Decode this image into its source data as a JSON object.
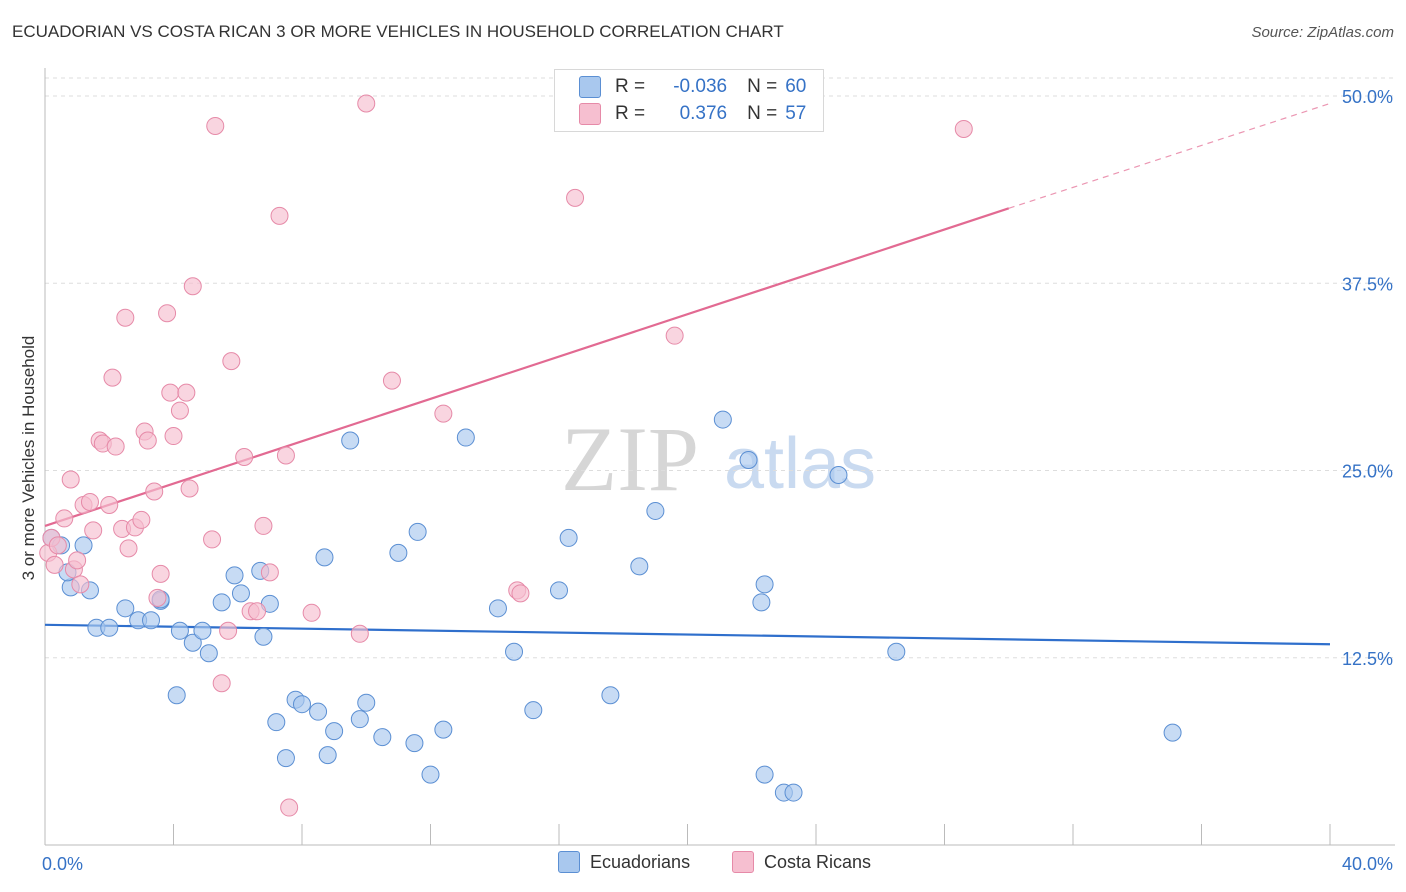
{
  "title": "ECUADORIAN VS COSTA RICAN 3 OR MORE VEHICLES IN HOUSEHOLD CORRELATION CHART",
  "source": "Source: ZipAtlas.com",
  "watermark": {
    "zip": "ZIP",
    "atlas": "atlas"
  },
  "colors": {
    "blue_fill": "#a9c8ee",
    "blue_stroke": "#5b8fd3",
    "blue_line": "#2f6fcc",
    "pink_fill": "#f6bfd0",
    "pink_stroke": "#e68aa8",
    "pink_line": "#e26a92",
    "tick_label": "#3572c6",
    "grid": "#dddddd"
  },
  "legend": {
    "rows": [
      {
        "r_label": "R =",
        "r_value": "-0.036",
        "n_label": "N =",
        "n_value": "60",
        "color": "#a9c8ee",
        "stroke": "#5b8fd3"
      },
      {
        "r_label": "R =",
        "r_value": "0.376",
        "n_label": "N =",
        "n_value": "57",
        "color": "#f6bfd0",
        "stroke": "#e68aa8"
      }
    ]
  },
  "bottom_legend": [
    {
      "label": "Ecuadorians",
      "color": "#a9c8ee",
      "stroke": "#5b8fd3"
    },
    {
      "label": "Costa Ricans",
      "color": "#f6bfd0",
      "stroke": "#e68aa8"
    }
  ],
  "chart_data": {
    "type": "scatter",
    "title": "ECUADORIAN VS COSTA RICAN 3 OR MORE VEHICLES IN HOUSEHOLD CORRELATION CHART",
    "xlabel": "",
    "ylabel": "3 or more Vehicles in Household",
    "xlim": [
      0,
      40
    ],
    "ylim": [
      0,
      50
    ],
    "x_tick_labels": [
      {
        "value": 0,
        "label": "0.0%"
      },
      {
        "value": 40,
        "label": "40.0%"
      }
    ],
    "y_tick_labels": [
      {
        "value": 12.5,
        "label": "12.5%"
      },
      {
        "value": 25,
        "label": "25.0%"
      },
      {
        "value": 37.5,
        "label": "37.5%"
      },
      {
        "value": 50,
        "label": "50.0%"
      }
    ],
    "x_minor_ticks": [
      0,
      4,
      8,
      12,
      16,
      20,
      24,
      28,
      32,
      36,
      40
    ],
    "grid": true,
    "series": [
      {
        "name": "Ecuadorians",
        "r": -0.036,
        "n": 60,
        "trend": {
          "x0": 0,
          "y0": 14.7,
          "x1": 40,
          "y1": 13.4
        },
        "points": [
          [
            0.2,
            20.5
          ],
          [
            0.5,
            20.0
          ],
          [
            0.8,
            17.2
          ],
          [
            0.7,
            18.2
          ],
          [
            1.4,
            17.0
          ],
          [
            1.6,
            14.5
          ],
          [
            2.0,
            14.5
          ],
          [
            2.5,
            15.8
          ],
          [
            2.9,
            15.0
          ],
          [
            3.3,
            15.0
          ],
          [
            3.6,
            16.3
          ],
          [
            4.2,
            14.3
          ],
          [
            4.6,
            13.5
          ],
          [
            5.1,
            12.8
          ],
          [
            4.9,
            14.3
          ],
          [
            5.5,
            16.2
          ],
          [
            6.1,
            16.8
          ],
          [
            5.9,
            18.0
          ],
          [
            6.7,
            18.3
          ],
          [
            6.8,
            13.9
          ],
          [
            7.0,
            16.1
          ],
          [
            7.2,
            8.2
          ],
          [
            7.5,
            5.8
          ],
          [
            7.8,
            9.7
          ],
          [
            8.0,
            9.4
          ],
          [
            8.5,
            8.9
          ],
          [
            8.8,
            6.0
          ],
          [
            9.0,
            7.6
          ],
          [
            9.5,
            27.0
          ],
          [
            9.8,
            8.4
          ],
          [
            10.0,
            9.5
          ],
          [
            10.5,
            7.2
          ],
          [
            11.0,
            19.5
          ],
          [
            11.5,
            6.8
          ],
          [
            11.6,
            20.9
          ],
          [
            12.0,
            4.7
          ],
          [
            12.4,
            7.7
          ],
          [
            13.1,
            27.2
          ],
          [
            14.1,
            15.8
          ],
          [
            14.6,
            12.9
          ],
          [
            15.2,
            9.0
          ],
          [
            16.0,
            17.0
          ],
          [
            16.3,
            20.5
          ],
          [
            17.6,
            10.0
          ],
          [
            18.5,
            18.6
          ],
          [
            19.0,
            22.3
          ],
          [
            21.1,
            28.4
          ],
          [
            21.9,
            25.7
          ],
          [
            22.4,
            4.7
          ],
          [
            22.3,
            16.2
          ],
          [
            22.4,
            17.4
          ],
          [
            23.0,
            3.5
          ],
          [
            23.3,
            3.5
          ],
          [
            24.7,
            24.7
          ],
          [
            26.5,
            12.9
          ],
          [
            35.1,
            7.5
          ],
          [
            3.6,
            16.4
          ],
          [
            1.2,
            20.0
          ],
          [
            8.7,
            19.2
          ],
          [
            4.1,
            10.0
          ]
        ]
      },
      {
        "name": "Costa Ricans",
        "r": 0.376,
        "n": 57,
        "trend": {
          "x0": 0,
          "y0": 21.3,
          "x1": 30,
          "y1": 42.5,
          "dash_x1": 40,
          "dash_y1": 49.5
        },
        "points": [
          [
            0.1,
            19.5
          ],
          [
            0.2,
            20.5
          ],
          [
            0.4,
            20.0
          ],
          [
            0.6,
            21.8
          ],
          [
            0.8,
            24.4
          ],
          [
            0.9,
            18.4
          ],
          [
            1.0,
            19.0
          ],
          [
            1.1,
            17.4
          ],
          [
            1.2,
            22.7
          ],
          [
            1.4,
            22.9
          ],
          [
            1.5,
            21.0
          ],
          [
            1.7,
            27.0
          ],
          [
            1.8,
            26.8
          ],
          [
            2.0,
            22.7
          ],
          [
            2.2,
            26.6
          ],
          [
            2.1,
            31.2
          ],
          [
            2.4,
            21.1
          ],
          [
            2.5,
            35.2
          ],
          [
            2.6,
            19.8
          ],
          [
            2.8,
            21.2
          ],
          [
            3.0,
            21.7
          ],
          [
            3.1,
            27.6
          ],
          [
            3.2,
            27.0
          ],
          [
            3.4,
            23.6
          ],
          [
            3.5,
            16.5
          ],
          [
            3.6,
            18.1
          ],
          [
            3.8,
            35.5
          ],
          [
            3.9,
            30.2
          ],
          [
            4.0,
            27.3
          ],
          [
            4.2,
            29.0
          ],
          [
            4.4,
            30.2
          ],
          [
            4.6,
            37.3
          ],
          [
            4.5,
            23.8
          ],
          [
            5.2,
            20.4
          ],
          [
            5.5,
            10.8
          ],
          [
            5.3,
            48.0
          ],
          [
            5.7,
            14.3
          ],
          [
            5.8,
            32.3
          ],
          [
            6.2,
            25.9
          ],
          [
            6.4,
            15.6
          ],
          [
            6.6,
            15.6
          ],
          [
            6.8,
            21.3
          ],
          [
            7.0,
            18.2
          ],
          [
            7.3,
            42.0
          ],
          [
            7.5,
            26.0
          ],
          [
            7.6,
            2.5
          ],
          [
            8.3,
            15.5
          ],
          [
            9.8,
            14.1
          ],
          [
            10.0,
            49.5
          ],
          [
            10.8,
            31.0
          ],
          [
            12.4,
            28.8
          ],
          [
            14.7,
            17.0
          ],
          [
            14.8,
            16.8
          ],
          [
            16.5,
            43.2
          ],
          [
            19.6,
            34.0
          ],
          [
            28.6,
            47.8
          ],
          [
            0.3,
            18.7
          ]
        ]
      }
    ]
  }
}
